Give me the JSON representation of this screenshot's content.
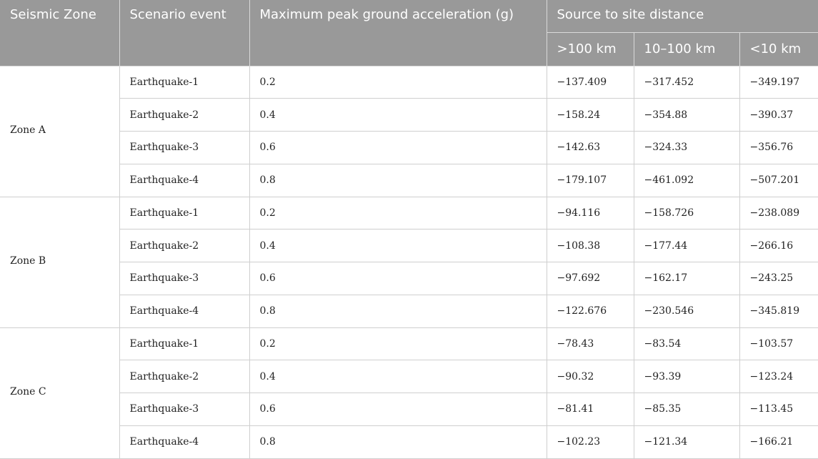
{
  "header": {
    "seismic_zone": "Seismic Zone",
    "scenario_event": "Scenario event",
    "max_pga": "Maximum peak ground acceleration (g)",
    "source_to_site": "Source to site distance",
    "dist_far": ">100 km",
    "dist_mid": "10–100 km",
    "dist_near": "<10 km"
  },
  "zones": [
    {
      "name": "Zone A",
      "rows": [
        {
          "event": "Earthquake-1",
          "pga": "0.2",
          "far": "−137.409",
          "mid": "−317.452",
          "near": "−349.197"
        },
        {
          "event": "Earthquake-2",
          "pga": "0.4",
          "far": "−158.24",
          "mid": "−354.88",
          "near": "−390.37"
        },
        {
          "event": "Earthquake-3",
          "pga": "0.6",
          "far": "−142.63",
          "mid": "−324.33",
          "near": "−356.76"
        },
        {
          "event": "Earthquake-4",
          "pga": "0.8",
          "far": "−179.107",
          "mid": "−461.092",
          "near": "−507.201"
        }
      ]
    },
    {
      "name": "Zone B",
      "rows": [
        {
          "event": "Earthquake-1",
          "pga": "0.2",
          "far": "−94.116",
          "mid": "−158.726",
          "near": "−238.089"
        },
        {
          "event": "Earthquake-2",
          "pga": "0.4",
          "far": "−108.38",
          "mid": "−177.44",
          "near": "−266.16"
        },
        {
          "event": "Earthquake-3",
          "pga": "0.6",
          "far": "−97.692",
          "mid": "−162.17",
          "near": "−243.25"
        },
        {
          "event": "Earthquake-4",
          "pga": "0.8",
          "far": "−122.676",
          "mid": "−230.546",
          "near": "−345.819"
        }
      ]
    },
    {
      "name": "Zone C",
      "rows": [
        {
          "event": "Earthquake-1",
          "pga": "0.2",
          "far": "−78.43",
          "mid": "−83.54",
          "near": "−103.57"
        },
        {
          "event": "Earthquake-2",
          "pga": "0.4",
          "far": "−90.32",
          "mid": "−93.39",
          "near": "−123.24"
        },
        {
          "event": "Earthquake-3",
          "pga": "0.6",
          "far": "−81.41",
          "mid": "−85.35",
          "near": "−113.45"
        },
        {
          "event": "Earthquake-4",
          "pga": "0.8",
          "far": "−102.23",
          "mid": "−121.34",
          "near": "−166.21"
        }
      ]
    }
  ]
}
